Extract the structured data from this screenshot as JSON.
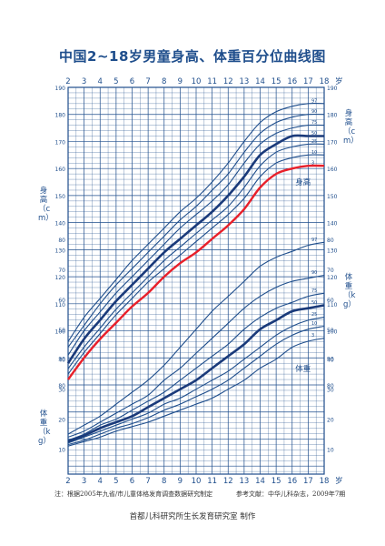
{
  "title": "中国2~18岁男童身高、体重百分位曲线图",
  "note_left": "注：根据2005年九省/市儿童体格发育调查数据研究制定",
  "note_right": "参考文献：中华儿科杂志，2009年7期",
  "footer": "首都儿科研究所生长发育研究室  制作",
  "colors": {
    "grid": "#1f4e8c",
    "curve": "#1f4e8c",
    "median": "#1a3a7a",
    "p3": "#e8202a"
  },
  "chart_data": {
    "type": "line",
    "x_unit": "岁",
    "x_ticks": [
      2,
      3,
      4,
      5,
      6,
      7,
      8,
      9,
      10,
      11,
      12,
      13,
      14,
      15,
      16,
      17,
      18
    ],
    "height_axis": {
      "label": "身高（cm）",
      "range": [
        80,
        190
      ],
      "ticks": [
        80,
        90,
        100,
        110,
        120,
        130,
        140,
        150,
        160,
        170,
        180,
        190
      ]
    },
    "weight_axis": {
      "label": "体重（kg）",
      "range": [
        5,
        80
      ],
      "ticks": [
        10,
        20,
        30,
        40,
        50,
        60,
        70,
        80
      ]
    },
    "height_label": "身高",
    "weight_label": "体重",
    "height_series": [
      {
        "name": "97",
        "x": [
          2,
          3,
          4,
          5,
          6,
          7,
          8,
          9,
          10,
          11,
          12,
          13,
          14,
          15,
          16,
          17,
          18
        ],
        "y": [
          96,
          105,
          112,
          119,
          126,
          132,
          138,
          144,
          149,
          155,
          162,
          170,
          177,
          181,
          183,
          184,
          184
        ]
      },
      {
        "name": "90",
        "x": [
          2,
          3,
          4,
          5,
          6,
          7,
          8,
          9,
          10,
          11,
          12,
          13,
          14,
          15,
          16,
          17,
          18
        ],
        "y": [
          94,
          102,
          110,
          117,
          123,
          129,
          135,
          141,
          146,
          152,
          158,
          166,
          173,
          177,
          179,
          180,
          180
        ]
      },
      {
        "name": "75",
        "x": [
          2,
          3,
          4,
          5,
          6,
          7,
          8,
          9,
          10,
          11,
          12,
          13,
          14,
          15,
          16,
          17,
          18
        ],
        "y": [
          91,
          100,
          107,
          114,
          120,
          126,
          132,
          138,
          143,
          148,
          154,
          162,
          169,
          173,
          175,
          176,
          176
        ]
      },
      {
        "name": "50",
        "x": [
          2,
          3,
          4,
          5,
          6,
          7,
          8,
          9,
          10,
          11,
          12,
          13,
          14,
          15,
          16,
          17,
          18
        ],
        "y": [
          88,
          97,
          104,
          111,
          117,
          123,
          129,
          134,
          139,
          144,
          150,
          157,
          165,
          169,
          172,
          172,
          172
        ]
      },
      {
        "name": "25",
        "x": [
          2,
          3,
          4,
          5,
          6,
          7,
          8,
          9,
          10,
          11,
          12,
          13,
          14,
          15,
          16,
          17,
          18
        ],
        "y": [
          86,
          94,
          101,
          108,
          114,
          120,
          126,
          131,
          136,
          141,
          146,
          153,
          161,
          166,
          168,
          169,
          169
        ]
      },
      {
        "name": "10",
        "x": [
          2,
          3,
          4,
          5,
          6,
          7,
          8,
          9,
          10,
          11,
          12,
          13,
          14,
          15,
          16,
          17,
          18
        ],
        "y": [
          84,
          92,
          99,
          106,
          112,
          118,
          123,
          128,
          133,
          138,
          143,
          149,
          157,
          162,
          164,
          165,
          165
        ]
      },
      {
        "name": "3",
        "x": [
          2,
          3,
          4,
          5,
          6,
          7,
          8,
          9,
          10,
          11,
          12,
          13,
          14,
          15,
          16,
          17,
          18
        ],
        "y": [
          82,
          90,
          97,
          103,
          109,
          114,
          120,
          125,
          129,
          134,
          139,
          145,
          153,
          158,
          160,
          161,
          161
        ]
      }
    ],
    "weight_series": [
      {
        "name": "97",
        "x": [
          2,
          3,
          4,
          5,
          6,
          7,
          8,
          9,
          10,
          11,
          12,
          13,
          14,
          15,
          16,
          17,
          18
        ],
        "y": [
          15,
          18,
          21,
          25,
          29,
          33,
          38,
          44,
          50,
          56,
          61,
          66,
          71,
          74,
          76,
          78,
          79
        ]
      },
      {
        "name": "90",
        "x": [
          2,
          3,
          4,
          5,
          6,
          7,
          8,
          9,
          10,
          11,
          12,
          13,
          14,
          15,
          16,
          17,
          18
        ],
        "y": [
          14,
          16,
          19,
          22,
          25,
          28,
          33,
          37,
          42,
          47,
          52,
          57,
          61,
          64,
          66,
          67,
          68
        ]
      },
      {
        "name": "75",
        "x": [
          2,
          3,
          4,
          5,
          6,
          7,
          8,
          9,
          10,
          11,
          12,
          13,
          14,
          15,
          16,
          17,
          18
        ],
        "y": [
          13,
          15,
          18,
          20,
          23,
          26,
          29,
          33,
          37,
          41,
          45,
          50,
          54,
          57,
          59,
          61,
          62
        ]
      },
      {
        "name": "50",
        "x": [
          2,
          3,
          4,
          5,
          6,
          7,
          8,
          9,
          10,
          11,
          12,
          13,
          14,
          15,
          16,
          17,
          18
        ],
        "y": [
          12.5,
          14.5,
          17,
          19,
          21,
          24,
          27,
          30,
          33,
          37,
          41,
          45,
          50,
          53,
          56,
          57,
          58
        ]
      },
      {
        "name": "25",
        "x": [
          2,
          3,
          4,
          5,
          6,
          7,
          8,
          9,
          10,
          11,
          12,
          13,
          14,
          15,
          16,
          17,
          18
        ],
        "y": [
          12,
          14,
          16,
          18,
          20,
          22,
          25,
          27,
          30,
          33,
          36,
          40,
          44,
          48,
          51,
          53,
          54
        ]
      },
      {
        "name": "10",
        "x": [
          2,
          3,
          4,
          5,
          6,
          7,
          8,
          9,
          10,
          11,
          12,
          13,
          14,
          15,
          16,
          17,
          18
        ],
        "y": [
          11.5,
          13,
          15,
          17,
          18.5,
          20.5,
          23,
          25,
          27.5,
          30,
          33,
          37,
          41,
          45,
          48,
          50,
          51
        ]
      },
      {
        "name": "3",
        "x": [
          2,
          3,
          4,
          5,
          6,
          7,
          8,
          9,
          10,
          11,
          12,
          13,
          14,
          15,
          16,
          17,
          18
        ],
        "y": [
          11,
          12.5,
          14,
          16,
          17.5,
          19,
          21,
          23,
          25,
          27,
          30,
          33,
          37,
          40,
          44,
          46,
          47
        ]
      }
    ]
  }
}
